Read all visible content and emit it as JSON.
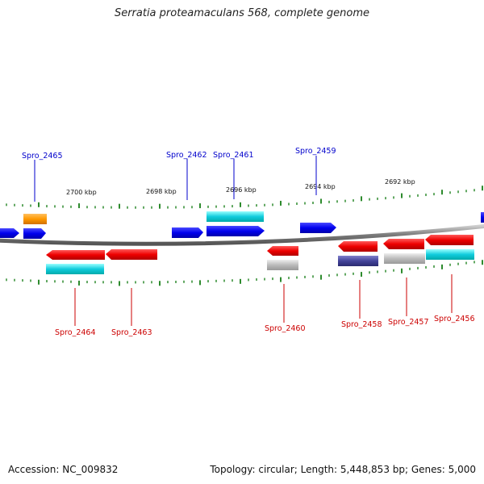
{
  "title": "Serratia proteamaculans 568, complete genome",
  "footer": {
    "accession": "Accession: NC_009832",
    "summary": "Topology: circular; Length: 5,448,853 bp; Genes: 5,000"
  },
  "colors": {
    "forward_label": "#0000cc",
    "reverse_label": "#cc0000",
    "tick": "#2e8b2e",
    "backbone": "#888888"
  },
  "kbp_labels": [
    "2700 kbp",
    "2698 kbp",
    "2696 kbp",
    "2694 kbp",
    "2692 kbp"
  ],
  "gene_labels_top": [
    "Spro_2465",
    "Spro_2462",
    "Spro_2461",
    "Spro_2459"
  ],
  "gene_labels_bottom": [
    "Spro_2464",
    "Spro_2463",
    "Spro_2460",
    "Spro_2458",
    "Spro_2457",
    "Spro_2456"
  ]
}
